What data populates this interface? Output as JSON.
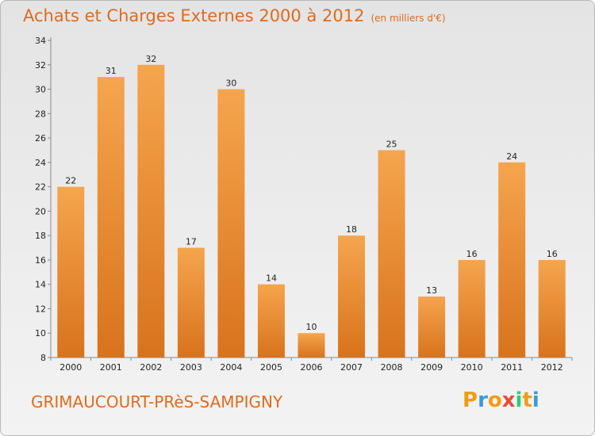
{
  "title": "Achats et Charges Externes 2000 à 2012",
  "subtitle": "(en milliers d'€)",
  "commune": "GRIMAUCOURT-PRèS-SAMPIGNY",
  "logo": {
    "letters": [
      "P",
      "r",
      "o",
      "x",
      "i",
      "t",
      "i"
    ],
    "colors": [
      "#f39c12",
      "#3a9ad9",
      "#f39c12",
      "#e74c3c",
      "#2ecc71",
      "#f39c12",
      "#3a9ad9"
    ]
  },
  "colors": {
    "bar_top": "#f5a54e",
    "bar_bottom": "#d8731c",
    "title": "#e06a1e"
  },
  "chart_data": {
    "type": "bar",
    "categories": [
      "2000",
      "2001",
      "2002",
      "2003",
      "2004",
      "2005",
      "2006",
      "2007",
      "2008",
      "2009",
      "2010",
      "2011",
      "2012"
    ],
    "values": [
      22,
      31,
      32,
      17,
      30,
      14,
      10,
      18,
      25,
      13,
      16,
      24,
      16
    ],
    "ylim": [
      8,
      34
    ],
    "yticks": [
      8,
      10,
      12,
      14,
      16,
      18,
      20,
      22,
      24,
      26,
      28,
      30,
      32,
      34
    ],
    "grid": false,
    "title": "Achats et Charges Externes 2000 à 2012",
    "subtitle": "(en milliers d'€)"
  }
}
